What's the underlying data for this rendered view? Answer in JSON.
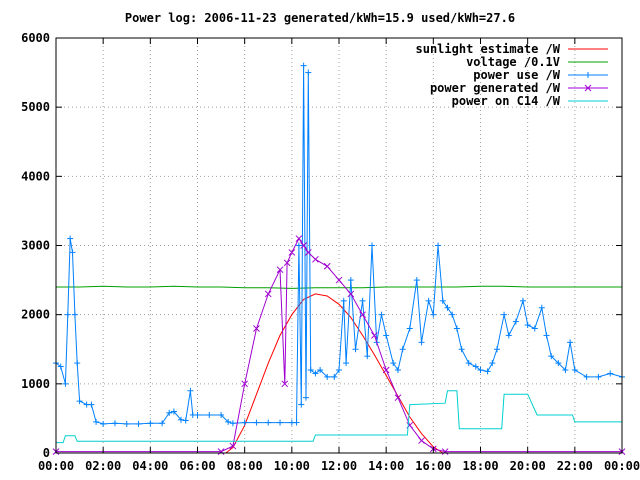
{
  "chart_data": {
    "type": "line",
    "title": "Power log: 2006-11-23 generated/kWh=15.9 used/kWh=27.6",
    "x_ticks": [
      "00:00",
      "02:00",
      "04:00",
      "06:00",
      "08:00",
      "10:00",
      "12:00",
      "14:00",
      "16:00",
      "18:00",
      "20:00",
      "22:00",
      "00:00"
    ],
    "y_ticks": [
      0,
      1000,
      2000,
      3000,
      4000,
      5000,
      6000
    ],
    "xlim_hours": [
      0,
      24
    ],
    "ylim": [
      0,
      6000
    ],
    "grid": true,
    "legend_position": "top-right",
    "series": [
      {
        "name": "sunlight estimate /W",
        "color": "#ff0000",
        "style": "line",
        "points": [
          [
            7.2,
            0
          ],
          [
            7.5,
            80
          ],
          [
            8.0,
            400
          ],
          [
            8.5,
            850
          ],
          [
            9.0,
            1300
          ],
          [
            9.5,
            1700
          ],
          [
            10.0,
            2000
          ],
          [
            10.5,
            2220
          ],
          [
            11.0,
            2300
          ],
          [
            11.5,
            2270
          ],
          [
            12.0,
            2150
          ],
          [
            12.5,
            1960
          ],
          [
            13.0,
            1700
          ],
          [
            13.5,
            1420
          ],
          [
            14.0,
            1120
          ],
          [
            14.5,
            820
          ],
          [
            15.0,
            520
          ],
          [
            15.5,
            280
          ],
          [
            16.0,
            90
          ],
          [
            16.4,
            0
          ]
        ]
      },
      {
        "name": "voltage /0.1V",
        "color": "#00a000",
        "style": "line",
        "points": [
          [
            0,
            2400
          ],
          [
            1,
            2400
          ],
          [
            2,
            2410
          ],
          [
            3,
            2400
          ],
          [
            4,
            2400
          ],
          [
            5,
            2410
          ],
          [
            6,
            2400
          ],
          [
            7,
            2400
          ],
          [
            8,
            2390
          ],
          [
            9,
            2390
          ],
          [
            10,
            2380
          ],
          [
            11,
            2390
          ],
          [
            12,
            2390
          ],
          [
            13,
            2390
          ],
          [
            14,
            2400
          ],
          [
            15,
            2400
          ],
          [
            16,
            2400
          ],
          [
            17,
            2400
          ],
          [
            18,
            2410
          ],
          [
            19,
            2410
          ],
          [
            20,
            2400
          ],
          [
            21,
            2400
          ],
          [
            22,
            2400
          ],
          [
            23,
            2400
          ],
          [
            24,
            2400
          ]
        ]
      },
      {
        "name": "power use /W",
        "color": "#0080ff",
        "style": "linespoints",
        "marker": "plus",
        "points": [
          [
            0,
            1300
          ],
          [
            0.2,
            1250
          ],
          [
            0.4,
            1000
          ],
          [
            0.5,
            2000
          ],
          [
            0.6,
            3100
          ],
          [
            0.7,
            2900
          ],
          [
            0.8,
            2000
          ],
          [
            0.9,
            1300
          ],
          [
            1.0,
            750
          ],
          [
            1.3,
            700
          ],
          [
            1.5,
            700
          ],
          [
            1.7,
            450
          ],
          [
            2.0,
            420
          ],
          [
            2.5,
            430
          ],
          [
            3.0,
            420
          ],
          [
            3.5,
            420
          ],
          [
            4.0,
            430
          ],
          [
            4.5,
            430
          ],
          [
            4.8,
            580
          ],
          [
            5.0,
            600
          ],
          [
            5.3,
            480
          ],
          [
            5.5,
            470
          ],
          [
            5.7,
            900
          ],
          [
            5.8,
            550
          ],
          [
            6.0,
            550
          ],
          [
            6.5,
            550
          ],
          [
            7.0,
            550
          ],
          [
            7.3,
            450
          ],
          [
            7.5,
            430
          ],
          [
            8.0,
            440
          ],
          [
            8.5,
            440
          ],
          [
            9.0,
            440
          ],
          [
            9.5,
            440
          ],
          [
            10.0,
            440
          ],
          [
            10.2,
            440
          ],
          [
            10.3,
            3000
          ],
          [
            10.4,
            700
          ],
          [
            10.5,
            5600
          ],
          [
            10.6,
            800
          ],
          [
            10.7,
            5500
          ],
          [
            10.8,
            1200
          ],
          [
            11.0,
            1150
          ],
          [
            11.2,
            1200
          ],
          [
            11.5,
            1100
          ],
          [
            11.8,
            1100
          ],
          [
            12.0,
            1200
          ],
          [
            12.2,
            2200
          ],
          [
            12.3,
            1300
          ],
          [
            12.5,
            2500
          ],
          [
            12.7,
            1500
          ],
          [
            13.0,
            2200
          ],
          [
            13.2,
            1400
          ],
          [
            13.4,
            3000
          ],
          [
            13.6,
            1600
          ],
          [
            13.8,
            2000
          ],
          [
            14.0,
            1700
          ],
          [
            14.3,
            1300
          ],
          [
            14.5,
            1200
          ],
          [
            14.7,
            1500
          ],
          [
            15.0,
            1800
          ],
          [
            15.3,
            2500
          ],
          [
            15.5,
            1600
          ],
          [
            15.8,
            2200
          ],
          [
            16.0,
            2000
          ],
          [
            16.2,
            3000
          ],
          [
            16.4,
            2200
          ],
          [
            16.6,
            2100
          ],
          [
            16.8,
            2000
          ],
          [
            17.0,
            1800
          ],
          [
            17.2,
            1500
          ],
          [
            17.5,
            1300
          ],
          [
            17.8,
            1250
          ],
          [
            18.0,
            1200
          ],
          [
            18.3,
            1180
          ],
          [
            18.5,
            1300
          ],
          [
            18.7,
            1500
          ],
          [
            19.0,
            2000
          ],
          [
            19.2,
            1700
          ],
          [
            19.5,
            1900
          ],
          [
            19.8,
            2200
          ],
          [
            20.0,
            1850
          ],
          [
            20.3,
            1800
          ],
          [
            20.6,
            2100
          ],
          [
            20.8,
            1700
          ],
          [
            21.0,
            1400
          ],
          [
            21.3,
            1300
          ],
          [
            21.6,
            1200
          ],
          [
            21.8,
            1600
          ],
          [
            22.0,
            1200
          ],
          [
            22.5,
            1100
          ],
          [
            23.0,
            1100
          ],
          [
            23.5,
            1150
          ],
          [
            24.0,
            1100
          ]
        ]
      },
      {
        "name": "power generated /W",
        "color": "#a000d0",
        "style": "linespoints",
        "marker": "cross",
        "points": [
          [
            0,
            20
          ],
          [
            7.0,
            20
          ],
          [
            7.5,
            100
          ],
          [
            8.0,
            1000
          ],
          [
            8.5,
            1800
          ],
          [
            9.0,
            2300
          ],
          [
            9.5,
            2650
          ],
          [
            9.7,
            1000
          ],
          [
            9.8,
            2750
          ],
          [
            10.0,
            2900
          ],
          [
            10.3,
            3100
          ],
          [
            10.5,
            3000
          ],
          [
            10.7,
            2900
          ],
          [
            11.0,
            2800
          ],
          [
            11.5,
            2700
          ],
          [
            12.0,
            2500
          ],
          [
            12.5,
            2300
          ],
          [
            13.0,
            2000
          ],
          [
            13.5,
            1700
          ],
          [
            14.0,
            1200
          ],
          [
            14.5,
            800
          ],
          [
            15.0,
            400
          ],
          [
            15.5,
            180
          ],
          [
            16.0,
            60
          ],
          [
            16.5,
            20
          ],
          [
            24,
            20
          ]
        ]
      },
      {
        "name": "power on C14 /W",
        "color": "#00d0d0",
        "style": "line",
        "points": [
          [
            0,
            150
          ],
          [
            0.3,
            150
          ],
          [
            0.4,
            250
          ],
          [
            0.8,
            250
          ],
          [
            0.9,
            170
          ],
          [
            10.0,
            170
          ],
          [
            10.1,
            170
          ],
          [
            10.9,
            170
          ],
          [
            11.0,
            260
          ],
          [
            14.0,
            260
          ],
          [
            14.9,
            260
          ],
          [
            15.0,
            700
          ],
          [
            16.5,
            720
          ],
          [
            16.6,
            900
          ],
          [
            17.0,
            900
          ],
          [
            17.1,
            350
          ],
          [
            18.9,
            350
          ],
          [
            19.0,
            850
          ],
          [
            20.0,
            850
          ],
          [
            20.4,
            550
          ],
          [
            21.9,
            550
          ],
          [
            22.0,
            450
          ],
          [
            24.0,
            450
          ]
        ]
      }
    ]
  }
}
